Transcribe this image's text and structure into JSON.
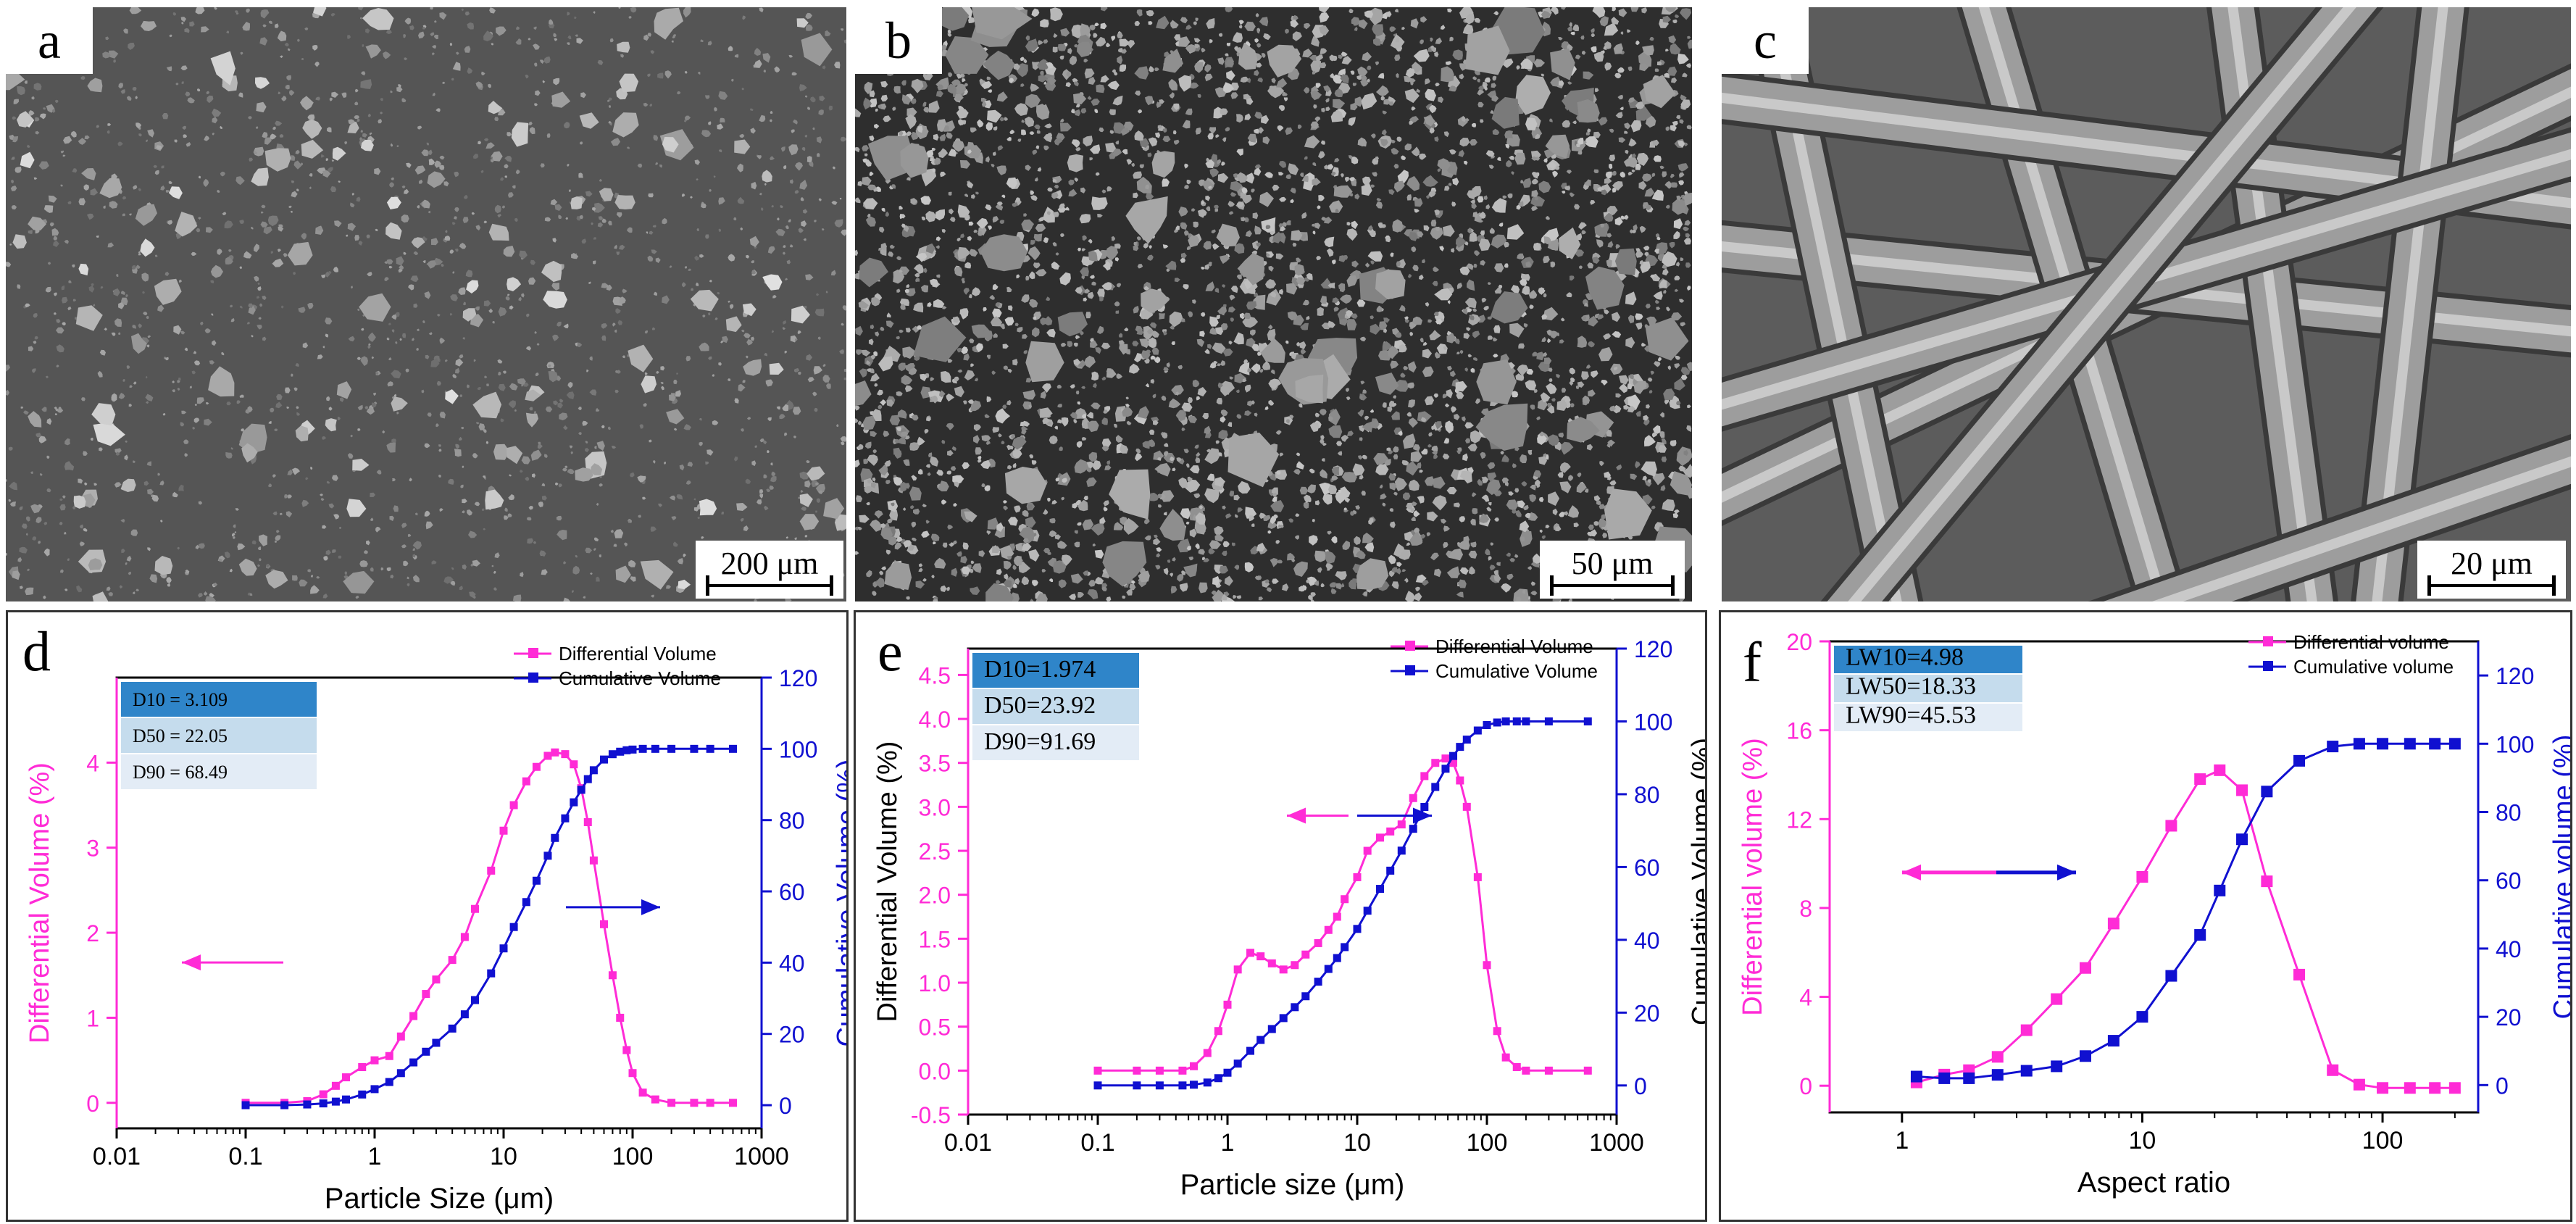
{
  "panels": {
    "a": {
      "label": "a",
      "scale": "200 μm"
    },
    "b": {
      "label": "b",
      "scale": "50 μm"
    },
    "c": {
      "label": "c",
      "scale": "20 μm"
    }
  },
  "colors": {
    "differential": "#ff2bd6",
    "cumulative": "#1010d0",
    "sem_bg": "#5a5a5a"
  },
  "chart_data": [
    {
      "panel": "d",
      "type": "line",
      "x_scale": "log",
      "xlabel": "Particle Size (μm)",
      "ylabel_left": "Differential Volume (%)",
      "ylabel_right": "Cumulative Volume (%)",
      "xlim": [
        0.01,
        1000
      ],
      "ylim_left": [
        -0.3,
        5
      ],
      "ylim_right": [
        -6.5,
        120
      ],
      "xticks": [
        "0.01",
        "0.1",
        "1",
        "10",
        "100",
        "1000"
      ],
      "yticks_left": [
        "0",
        "1",
        "2",
        "3",
        "4"
      ],
      "yticks_right": [
        "0",
        "20",
        "40",
        "60",
        "80",
        "100",
        "120"
      ],
      "legend": [
        "Differential Volume",
        "Cumulative Volume"
      ],
      "legend_position": "top-right",
      "stats": [
        "D10 = 3.109",
        "D50 = 22.05",
        "D90 = 68.49"
      ],
      "series": [
        {
          "name": "Differential Volume",
          "axis": "left",
          "x": [
            0.1,
            0.2,
            0.3,
            0.4,
            0.5,
            0.6,
            0.8,
            1,
            1.3,
            1.6,
            2,
            2.5,
            3,
            4,
            5,
            6,
            8,
            10,
            12,
            15,
            18,
            22,
            25,
            30,
            35,
            40,
            45,
            50,
            60,
            70,
            80,
            90,
            100,
            120,
            150,
            200,
            300,
            400,
            600
          ],
          "y": [
            0,
            0,
            0.02,
            0.1,
            0.2,
            0.3,
            0.42,
            0.5,
            0.55,
            0.78,
            1.02,
            1.28,
            1.45,
            1.68,
            1.95,
            2.28,
            2.73,
            3.2,
            3.5,
            3.78,
            3.95,
            4.08,
            4.12,
            4.1,
            3.98,
            3.7,
            3.3,
            2.85,
            2.1,
            1.5,
            1.0,
            0.62,
            0.35,
            0.12,
            0.04,
            0,
            0,
            0,
            0
          ]
        },
        {
          "name": "Cumulative Volume",
          "axis": "right",
          "x": [
            0.1,
            0.2,
            0.3,
            0.4,
            0.5,
            0.6,
            0.8,
            1,
            1.3,
            1.6,
            2,
            2.5,
            3,
            4,
            5,
            6,
            8,
            10,
            12,
            15,
            18,
            22,
            25,
            30,
            35,
            40,
            45,
            50,
            60,
            70,
            80,
            90,
            100,
            120,
            150,
            200,
            300,
            400,
            600
          ],
          "y": [
            0,
            0,
            0.2,
            0.5,
            1,
            1.6,
            3,
            4.5,
            6.5,
            9,
            12,
            15,
            17.5,
            21.5,
            25.5,
            29.5,
            37,
            44,
            50,
            57,
            63,
            70,
            75,
            80.5,
            85,
            88.5,
            91.5,
            94,
            97,
            98.5,
            99.2,
            99.6,
            99.8,
            100,
            100,
            100,
            100,
            100,
            100
          ]
        }
      ]
    },
    {
      "panel": "e",
      "type": "line",
      "x_scale": "log",
      "xlabel": "Particle size (μm)",
      "ylabel_left": "Differential Volume (%)",
      "ylabel_right": "Cumulative Volume (%)",
      "xlim": [
        0.01,
        1000
      ],
      "ylim_left": [
        -0.5,
        4.8
      ],
      "ylim_right": [
        -8,
        120
      ],
      "xticks": [
        "0.01",
        "0.1",
        "1",
        "10",
        "100",
        "1000"
      ],
      "yticks_left": [
        "-0.5",
        "0.0",
        "0.5",
        "1.0",
        "1.5",
        "2.0",
        "2.5",
        "3.0",
        "3.5",
        "4.0",
        "4.5"
      ],
      "yticks_right": [
        "0",
        "20",
        "40",
        "60",
        "80",
        "100",
        "120"
      ],
      "legend": [
        "Differential Volume",
        "Cumulative Volume"
      ],
      "legend_position": "top-right",
      "stats": [
        "D10=1.974",
        "D50=23.92",
        "D90=91.69"
      ],
      "series": [
        {
          "name": "Differential Volume",
          "axis": "left",
          "x": [
            0.1,
            0.2,
            0.3,
            0.45,
            0.55,
            0.7,
            0.85,
            1,
            1.2,
            1.5,
            1.8,
            2.2,
            2.7,
            3.3,
            4,
            5,
            6,
            7,
            8,
            10,
            12,
            15,
            18,
            22,
            27,
            33,
            40,
            48,
            55,
            62,
            70,
            85,
            100,
            120,
            140,
            170,
            200,
            300,
            600
          ],
          "y": [
            0,
            0,
            0,
            0,
            0.05,
            0.2,
            0.45,
            0.75,
            1.15,
            1.34,
            1.3,
            1.22,
            1.15,
            1.2,
            1.32,
            1.45,
            1.6,
            1.75,
            1.95,
            2.2,
            2.5,
            2.65,
            2.72,
            2.8,
            3.1,
            3.35,
            3.5,
            3.55,
            3.5,
            3.3,
            3.0,
            2.2,
            1.2,
            0.45,
            0.15,
            0.04,
            0,
            0,
            0
          ]
        },
        {
          "name": "Cumulative Volume",
          "axis": "right",
          "x": [
            0.1,
            0.2,
            0.3,
            0.45,
            0.55,
            0.7,
            0.85,
            1,
            1.2,
            1.5,
            1.8,
            2.2,
            2.7,
            3.3,
            4,
            5,
            6,
            7,
            8,
            10,
            12,
            15,
            18,
            22,
            27,
            33,
            40,
            48,
            55,
            62,
            70,
            85,
            100,
            120,
            140,
            170,
            200,
            300,
            600
          ],
          "y": [
            0,
            0,
            0,
            0,
            0.2,
            0.8,
            2,
            3.5,
            6,
            9.5,
            12.5,
            15.5,
            18.5,
            21.5,
            24.5,
            28.5,
            32,
            35,
            38,
            43,
            48,
            54,
            59,
            64.5,
            70.5,
            76.5,
            82,
            87,
            90.5,
            93,
            95,
            97.5,
            99,
            99.7,
            100,
            100,
            100,
            100,
            100
          ]
        }
      ]
    },
    {
      "panel": "f",
      "type": "line",
      "x_scale": "log",
      "xlabel": "Aspect ratio",
      "ylabel_left": "Differential volume (%)",
      "ylabel_right": "Cumulative volume (%)",
      "xlim": [
        0.5,
        250
      ],
      "ylim_left": [
        -1.2,
        20
      ],
      "ylim_right": [
        -8,
        130
      ],
      "xticks": [
        "1",
        "10",
        "100"
      ],
      "yticks_left": [
        "0",
        "4",
        "8",
        "12",
        "16",
        "20"
      ],
      "yticks_right": [
        "0",
        "20",
        "40",
        "60",
        "80",
        "100",
        "120"
      ],
      "legend": [
        "Differential volume",
        "Cumulative volume"
      ],
      "legend_position": "top-right",
      "stats": [
        "LW10=4.98",
        "LW50=18.33",
        "LW90=45.53"
      ],
      "series": [
        {
          "name": "Differential volume",
          "axis": "left",
          "x": [
            1.15,
            1.5,
            1.9,
            2.5,
            3.3,
            4.4,
            5.8,
            7.6,
            10,
            13.2,
            17.4,
            21,
            26,
            33,
            45,
            62,
            80,
            100,
            130,
            165,
            200
          ],
          "y": [
            0.15,
            0.5,
            0.7,
            1.3,
            2.5,
            3.9,
            5.3,
            7.3,
            9.4,
            11.7,
            13.8,
            14.2,
            13.3,
            9.2,
            5.0,
            0.7,
            0.05,
            -0.1,
            -0.1,
            -0.1,
            -0.1
          ]
        },
        {
          "name": "Cumulative volume",
          "axis": "right",
          "x": [
            1.15,
            1.5,
            1.9,
            2.5,
            3.3,
            4.4,
            5.8,
            7.6,
            10,
            13.2,
            17.4,
            21,
            26,
            33,
            45,
            62,
            80,
            100,
            130,
            165,
            200
          ],
          "y": [
            2.5,
            2,
            2,
            3,
            4.2,
            5.5,
            8.5,
            13,
            20,
            32,
            44,
            57,
            72,
            86,
            95,
            99.2,
            100,
            100,
            100,
            100,
            100
          ]
        }
      ]
    }
  ]
}
